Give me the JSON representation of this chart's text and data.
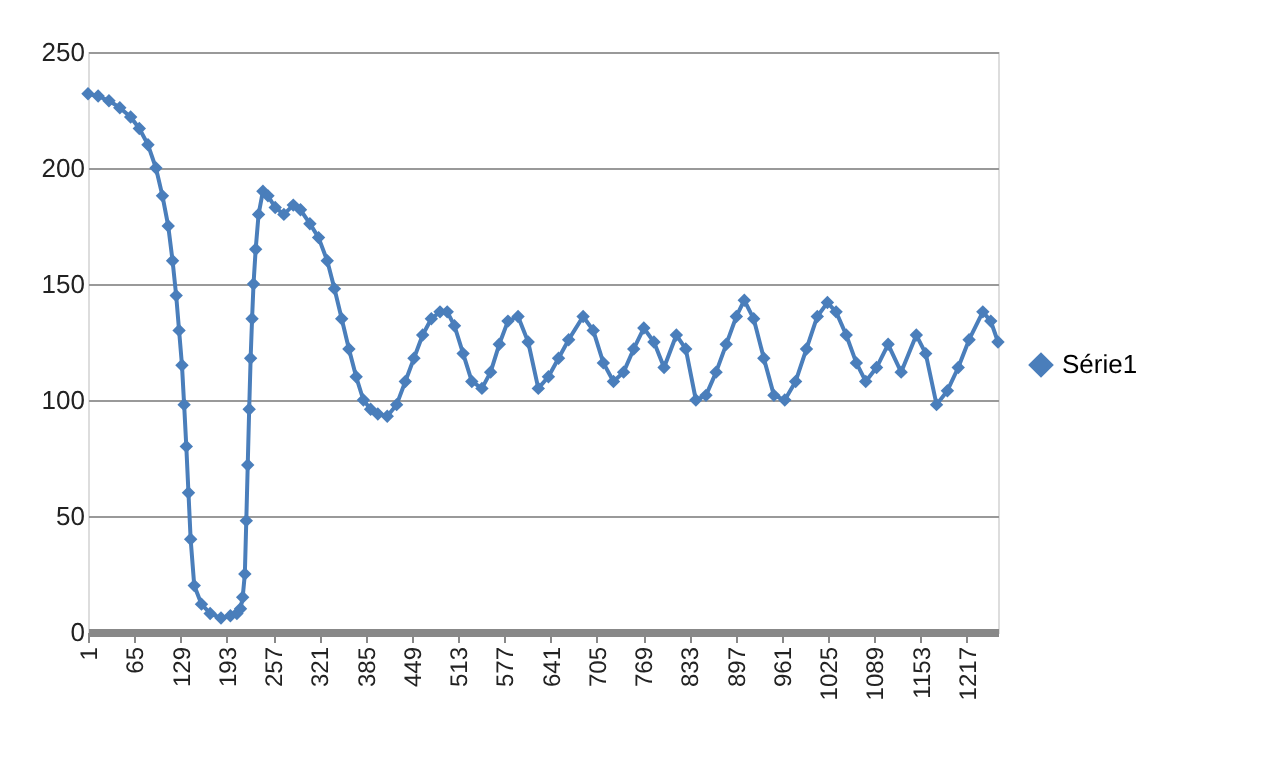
{
  "chart_data": {
    "type": "line",
    "marker": "diamond",
    "line_style": "solid",
    "grid": "y",
    "legend": "right",
    "x": [
      1,
      15,
      30,
      45,
      60,
      72,
      84,
      95,
      104,
      112,
      118,
      123,
      127,
      131,
      134,
      137,
      140,
      143,
      148,
      158,
      170,
      185,
      198,
      207,
      212,
      215,
      218,
      220,
      222,
      224,
      226,
      228,
      230,
      233,
      237,
      243,
      250,
      260,
      272,
      285,
      295,
      308,
      320,
      332,
      342,
      352,
      362,
      372,
      382,
      392,
      402,
      415,
      428,
      440,
      452,
      464,
      476,
      488,
      498,
      508,
      520,
      532,
      546,
      558,
      570,
      582,
      596,
      610,
      624,
      638,
      652,
      666,
      686,
      700,
      714,
      728,
      742,
      756,
      770,
      784,
      798,
      815,
      828,
      842,
      856,
      870,
      884,
      898,
      909,
      922,
      936,
      950,
      965,
      980,
      995,
      1010,
      1024,
      1036,
      1050,
      1064,
      1077,
      1092,
      1108,
      1126,
      1147,
      1160,
      1175,
      1190,
      1205,
      1220,
      1239,
      1250,
      1260
    ],
    "series": [
      {
        "name": "Série1",
        "color": "#4a7ebb",
        "values": [
          232,
          231,
          229,
          226,
          222,
          217,
          210,
          200,
          188,
          175,
          160,
          145,
          130,
          115,
          98,
          80,
          60,
          40,
          20,
          12,
          8,
          6,
          7,
          8,
          10,
          15,
          25,
          48,
          72,
          96,
          118,
          135,
          150,
          165,
          180,
          190,
          188,
          183,
          180,
          184,
          182,
          176,
          170,
          160,
          148,
          135,
          122,
          110,
          100,
          96,
          94,
          93,
          98,
          108,
          118,
          128,
          135,
          138,
          138,
          132,
          120,
          108,
          105,
          112,
          124,
          134,
          136,
          125,
          105,
          110,
          118,
          126,
          136,
          130,
          116,
          108,
          112,
          122,
          131,
          125,
          114,
          128,
          122,
          100,
          102,
          112,
          124,
          136,
          143,
          135,
          118,
          102,
          100,
          108,
          122,
          136,
          142,
          138,
          128,
          116,
          108,
          114,
          124,
          112,
          128,
          120,
          98,
          104,
          114,
          126,
          138,
          134,
          125
        ]
      }
    ],
    "ylim": [
      0,
      250
    ],
    "yticks": [
      0,
      50,
      100,
      150,
      200,
      250
    ],
    "xlim": [
      1,
      1260
    ],
    "xticks": [
      1,
      65,
      129,
      193,
      257,
      321,
      385,
      449,
      513,
      577,
      641,
      705,
      769,
      833,
      897,
      961,
      1025,
      1089,
      1153,
      1217
    ]
  }
}
